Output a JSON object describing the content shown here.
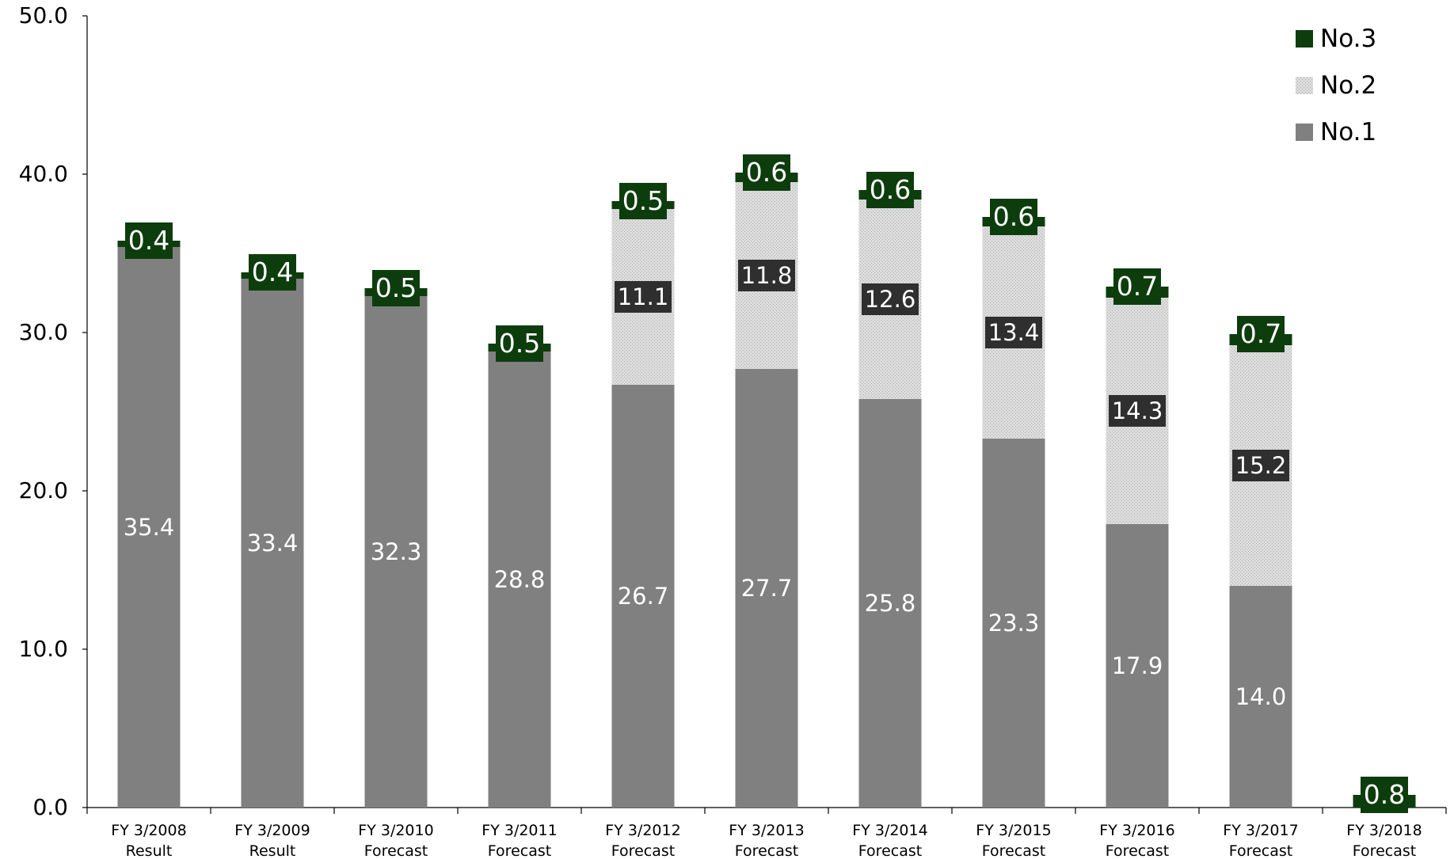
{
  "chart_data": {
    "type": "bar",
    "stacked": true,
    "categories": [
      [
        "FY 3/2008",
        "Result"
      ],
      [
        "FY 3/2009",
        "Result"
      ],
      [
        "FY 3/2010",
        "Forecast"
      ],
      [
        "FY 3/2011",
        "Forecast"
      ],
      [
        "FY 3/2012",
        "Forecast"
      ],
      [
        "FY 3/2013",
        "Forecast"
      ],
      [
        "FY 3/2014",
        "Forecast"
      ],
      [
        "FY 3/2015",
        "Forecast"
      ],
      [
        "FY 3/2016",
        "Forecast"
      ],
      [
        "FY 3/2017",
        "Forecast"
      ],
      [
        "FY 3/2018",
        "Forecast"
      ]
    ],
    "series": [
      {
        "name": "No.1",
        "color": "#808080",
        "values": [
          35.4,
          33.4,
          32.3,
          28.8,
          26.7,
          27.7,
          25.8,
          23.3,
          17.9,
          14.0,
          null
        ],
        "labels": [
          "35.4",
          "33.4",
          "32.3",
          "28.8",
          "26.7",
          "27.7",
          "25.8",
          "23.3",
          "17.9",
          "14.0",
          ""
        ]
      },
      {
        "name": "No.2",
        "color": "#d0d0d0",
        "values": [
          null,
          null,
          null,
          null,
          11.1,
          11.8,
          12.6,
          13.4,
          14.3,
          15.2,
          null
        ],
        "labels": [
          "",
          "",
          "",
          "",
          "11.1",
          "11.8",
          "12.6",
          "13.4",
          "14.3",
          "15.2",
          ""
        ]
      },
      {
        "name": "No.3",
        "color": "#0d3d0d",
        "values": [
          0.4,
          0.4,
          0.5,
          0.5,
          0.5,
          0.6,
          0.6,
          0.6,
          0.7,
          0.7,
          0.8
        ],
        "labels": [
          "0.4",
          "0.4",
          "0.5",
          "0.5",
          "0.5",
          "0.6",
          "0.6",
          "0.6",
          "0.7",
          "0.7",
          "0.8"
        ]
      }
    ],
    "ylim": [
      0,
      50
    ],
    "yticks": [
      "0.0",
      "10.0",
      "20.0",
      "30.0",
      "40.0",
      "50.0"
    ],
    "ytick_values": [
      0,
      10,
      20,
      30,
      40,
      50
    ],
    "legend": {
      "placement": "top-right",
      "order": [
        "No.3",
        "No.2",
        "No.1"
      ]
    },
    "grid": false
  }
}
